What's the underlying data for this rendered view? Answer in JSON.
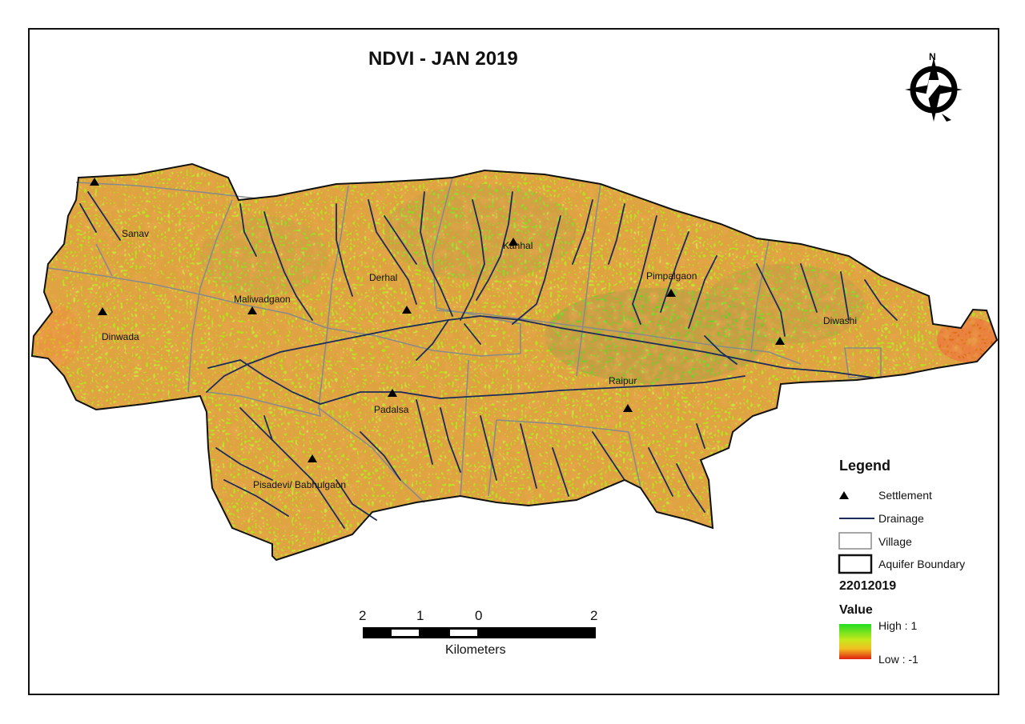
{
  "title": "NDVI - JAN 2019",
  "villages": [
    {
      "name": "Sanav"
    },
    {
      "name": "Maliwadgaon"
    },
    {
      "name": "Derhal"
    },
    {
      "name": "Kanhal"
    },
    {
      "name": "Pimpalgaon"
    },
    {
      "name": "Dinwada"
    },
    {
      "name": "Diwashi"
    },
    {
      "name": "Raipur"
    },
    {
      "name": "Padalsa"
    },
    {
      "name": "Pisadevi/ Babhulgaon"
    }
  ],
  "legend": {
    "title": "Legend",
    "settlement": "Settlement",
    "drainage": "Drainage",
    "village": "Village",
    "aquifer": "Aquifer Boundary",
    "raster_name": "22012019",
    "value_label": "Value",
    "high": "High : 1",
    "low": "Low : -1"
  },
  "scale": {
    "labels": [
      "2",
      "1",
      "0",
      "2"
    ],
    "unit": "Kilometers"
  },
  "north_arrow": {
    "letter": "N",
    "icon": "north-arrow-icon"
  },
  "colors": {
    "ndvi_high": "#33cc22",
    "ndvi_mid": "#b8e61e",
    "ndvi_low": "#e02a10",
    "drainage": "#1d2b5c",
    "village_line": "#8a8a8a",
    "boundary": "#111111"
  }
}
